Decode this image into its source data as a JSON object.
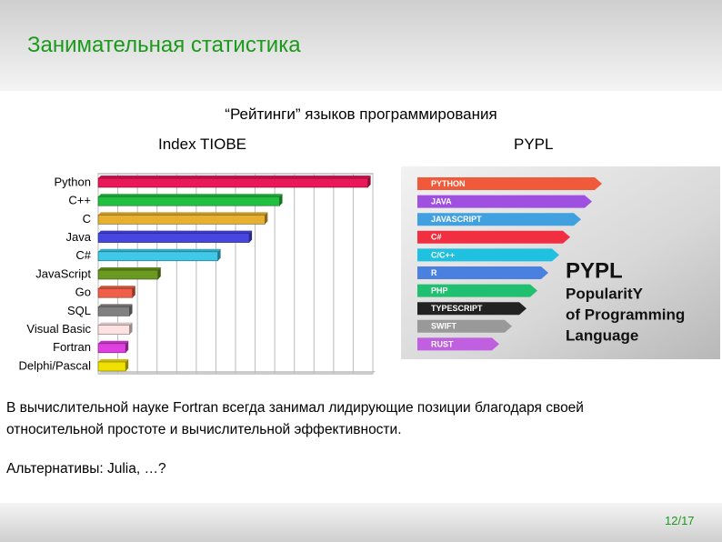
{
  "header": {
    "title": "Занимательная статистика"
  },
  "subtitle": "“Рейтинги” языков программирования",
  "tiobe_heading": "Index TIOBE",
  "pypl_heading": "PYPL",
  "chart_data": {
    "type": "hbar",
    "categories": [
      "Python",
      "C++",
      "C",
      "Java",
      "C#",
      "JavaScript",
      "Go",
      "SQL",
      "Visual Basic",
      "Fortran",
      "Delphi/Pascal"
    ],
    "values": [
      13.75,
      9.25,
      8.5,
      7.7,
      6.1,
      3.05,
      1.75,
      1.6,
      1.6,
      1.4,
      1.4
    ],
    "colors": [
      "#e8185a",
      "#22c040",
      "#e8b030",
      "#4646e0",
      "#40c8e8",
      "#6a9a20",
      "#f06048",
      "#808080",
      "#fde2e2",
      "#e040e0",
      "#f0e000"
    ],
    "xlim": [
      0,
      14
    ],
    "xticks": [
      0,
      1,
      2,
      3,
      4,
      5,
      6,
      7,
      8,
      9,
      10,
      11,
      12,
      13,
      14
    ],
    "grid": true
  },
  "pypl": {
    "items": [
      {
        "label": "PYTHON",
        "color": "#f05a3a"
      },
      {
        "label": "JAVA",
        "color": "#a050e0"
      },
      {
        "label": "JAVASCRIPT",
        "color": "#40a0e0"
      },
      {
        "label": "C#",
        "color": "#f03040"
      },
      {
        "label": "C/C++",
        "color": "#20c0e0"
      },
      {
        "label": "R",
        "color": "#4a80e0"
      },
      {
        "label": "PHP",
        "color": "#20c070"
      },
      {
        "label": "TYPESCRIPT",
        "color": "#222222"
      },
      {
        "label": "SWIFT",
        "color": "#999999"
      },
      {
        "label": "RUST",
        "color": "#c060e0"
      }
    ],
    "logo": "PYPL",
    "caption": [
      "PopularitY",
      "of Programming",
      "Language"
    ]
  },
  "paragraph": [
    "В вычислительной науке Fortran всегда занимал лидирующие позиции благодаря своей",
    "относительной простоте и вычислительной эффективности."
  ],
  "alternatives": "Альтернативы: Julia, …?",
  "page_number": "12/17"
}
